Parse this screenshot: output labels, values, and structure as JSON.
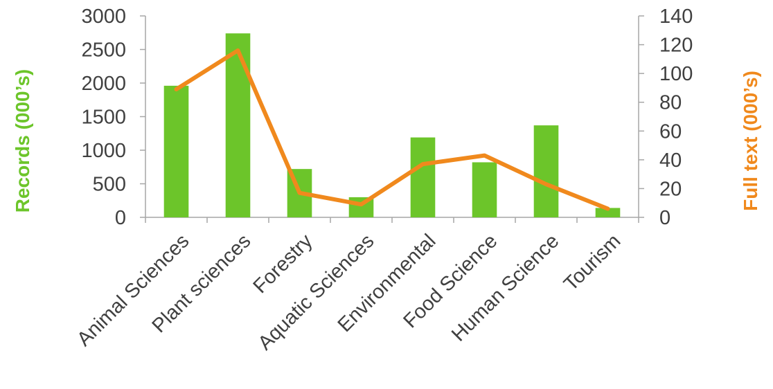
{
  "chart_data": {
    "type": "bar",
    "categories": [
      "Animal Sciences",
      "Plant sciences",
      "Forestry",
      "Aquatic Sciences",
      "Environmental",
      "Food Science",
      "Human Science",
      "Tourism"
    ],
    "series": [
      {
        "type": "bar",
        "axis": "left",
        "color": "#6cc52a",
        "values": [
          1960,
          2740,
          720,
          300,
          1190,
          820,
          1370,
          140
        ]
      },
      {
        "type": "line",
        "axis": "right",
        "color": "#f0891d",
        "values": [
          89,
          116,
          17,
          9,
          37,
          43,
          23,
          6
        ]
      }
    ],
    "ylabel": "Records (000’s)",
    "ylabel_right": "Full text (000’s)",
    "ylim": [
      0,
      3000
    ],
    "ylim_right": [
      0,
      140
    ],
    "yticks": [
      "0",
      "500",
      "1000",
      "1500",
      "2000",
      "2500",
      "3000"
    ],
    "yticks_right": [
      "0",
      "20",
      "40",
      "60",
      "80",
      "100",
      "120",
      "140"
    ],
    "ylabel_color": "#6cc52a",
    "ylabel_right_color": "#f0891d",
    "grid": false,
    "legend": "none"
  }
}
